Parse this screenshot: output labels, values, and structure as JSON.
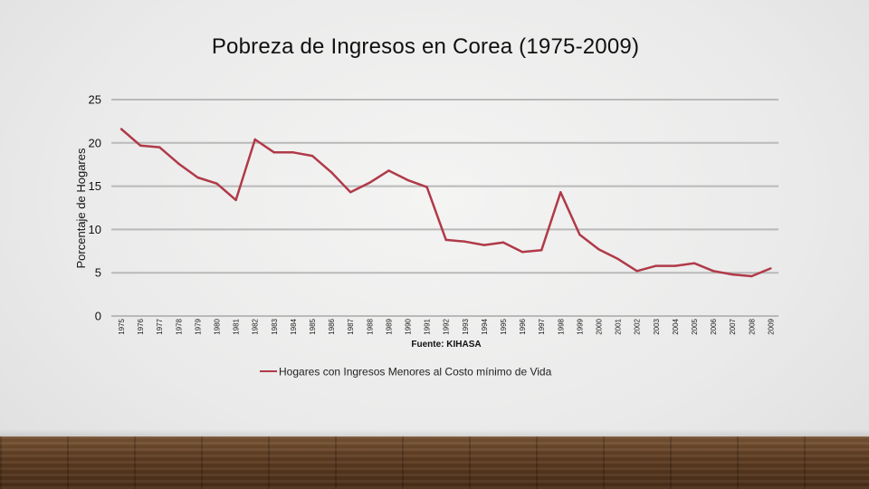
{
  "slide": {
    "title": "Pobreza de Ingresos en Corea (1975-2009)"
  },
  "chart_data": {
    "type": "line",
    "ylabel": "Porcentaje de Hogares",
    "xlabel": "Fuente: KIHASA",
    "ylim": [
      0,
      25
    ],
    "yticks": [
      0,
      5,
      10,
      15,
      20,
      25
    ],
    "grid": "horizontal",
    "legend_placement": "bottom",
    "categories": [
      "1975",
      "1976",
      "1977",
      "1978",
      "1979",
      "1980",
      "1981",
      "1982",
      "1983",
      "1984",
      "1985",
      "1986",
      "1987",
      "1988",
      "1989",
      "1990",
      "1991",
      "1992",
      "1993",
      "1994",
      "1995",
      "1996",
      "1997",
      "1998",
      "1999",
      "2000",
      "2001",
      "2002",
      "2003",
      "2004",
      "2005",
      "2006",
      "2007",
      "2008",
      "2009"
    ],
    "series": [
      {
        "name": "Hogares con Ingresos Menores al Costo mínimo de Vida",
        "color": "#b03a48",
        "values": [
          21.6,
          19.7,
          19.5,
          17.6,
          16.0,
          15.3,
          13.4,
          20.4,
          18.9,
          18.9,
          18.5,
          16.6,
          14.3,
          15.4,
          16.8,
          15.7,
          14.9,
          8.8,
          8.6,
          8.2,
          8.5,
          7.4,
          7.6,
          14.3,
          9.4,
          7.7,
          6.6,
          5.2,
          5.8,
          5.8,
          6.1,
          5.2,
          4.8,
          4.6,
          5.5
        ]
      }
    ]
  }
}
